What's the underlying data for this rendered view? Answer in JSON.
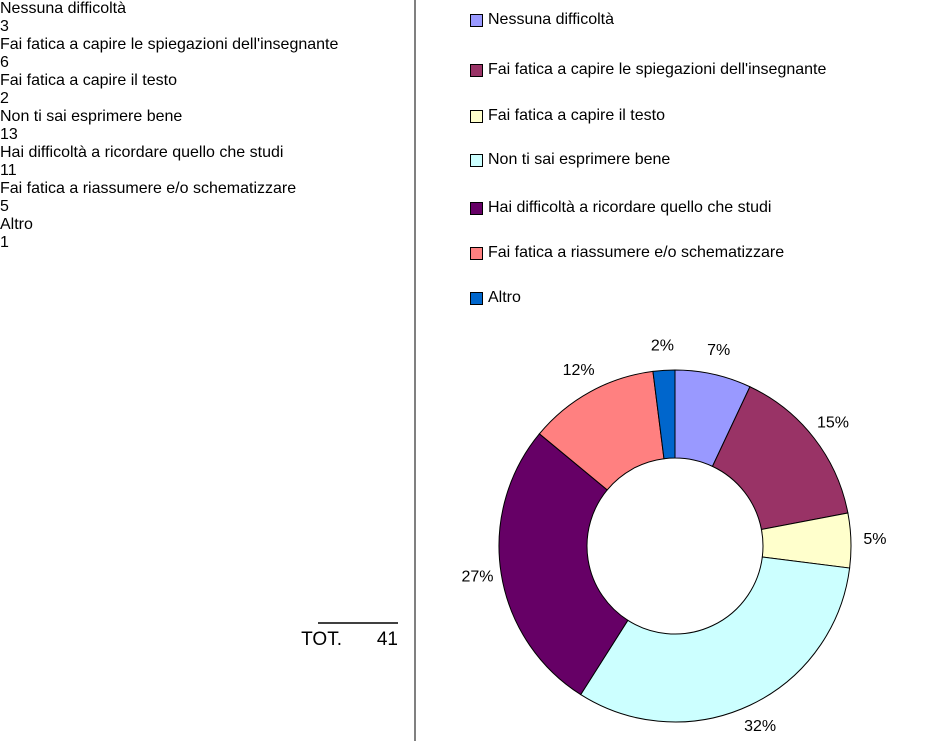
{
  "table": {
    "rows": [
      [
        "Nessuna difficoltà",
        "3"
      ],
      [
        "Fai fatica a capire le spiegazioni dell'insegnante",
        "6"
      ],
      [
        "Fai fatica a capire il testo",
        "2"
      ],
      [
        "Non ti sai esprimere bene",
        "13"
      ],
      [
        "Hai difficoltà a ricordare quello che studi",
        "11"
      ],
      [
        "Fai fatica a riassumere e/o schematizzare",
        "5"
      ],
      [
        "Altro",
        "1"
      ]
    ],
    "total_label": "TOT.",
    "total": "41"
  },
  "chart_data": {
    "type": "donut",
    "categories": [
      "Nessuna difficoltà",
      "Fai fatica a capire le spiegazioni dell'insegnante",
      "Fai fatica a capire il testo",
      "Non ti sai esprimere bene",
      "Hai difficoltà a ricordare quello che studi",
      "Fai fatica a riassumere e/o schematizzare",
      "Altro"
    ],
    "values": [
      7,
      15,
      5,
      32,
      27,
      12,
      2
    ],
    "value_labels": [
      "7%",
      "15%",
      "5%",
      "32%",
      "27%",
      "12%",
      "2%"
    ],
    "colors": [
      "#9999ff",
      "#993366",
      "#ffffcc",
      "#ccffff",
      "#660066",
      "#ff8080",
      "#0066cc"
    ]
  }
}
